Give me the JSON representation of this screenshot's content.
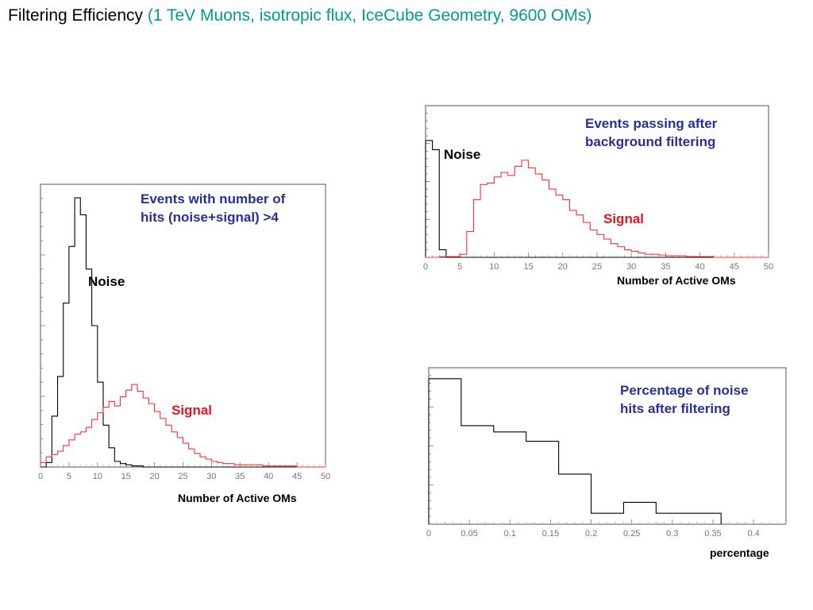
{
  "slide": {
    "title_main": "Filtering Efficiency",
    "title_sub": "(1 TeV Muons, isotropic flux, IceCube Geometry, 9600 OMs)"
  },
  "colors": {
    "noise": "#000000",
    "signal": "#ff3030",
    "annotation_blue": "#2b2f95",
    "annotation_red": "#e8141b",
    "title_sub": "#009b8f"
  },
  "chart_data": [
    {
      "type": "histogram",
      "id": "left",
      "xlabel": "Number of Active OMs",
      "xlim": [
        0,
        50
      ],
      "ylim": [
        0,
        0.25
      ],
      "bin_width": 1,
      "xticks": [
        "0",
        "5",
        "10",
        "15",
        "20",
        "25",
        "30",
        "35",
        "40",
        "45",
        "50"
      ],
      "annotations": {
        "header_line1": "Events with number of",
        "header_line2": "hits (noise+signal) >4",
        "noise": "Noise",
        "signal": "Signal"
      },
      "series": [
        {
          "label": "Noise",
          "color": "#000000",
          "values": [
            0.0,
            0.004,
            0.045,
            0.08,
            0.145,
            0.195,
            0.238,
            0.223,
            0.175,
            0.125,
            0.075,
            0.037,
            0.017,
            0.005,
            0.003,
            0.002,
            0.001,
            0.001,
            0.0,
            0.0,
            0.0,
            0.0,
            0.0,
            0.0,
            0.0,
            0.0,
            0.0,
            0.0,
            0.0,
            0.0,
            0.0,
            0.0,
            0.0,
            0.0,
            0.0,
            0.0,
            0.0,
            0.0,
            0.0,
            0.0,
            0.0,
            0.0,
            0.0,
            0.0,
            0.0,
            0.0,
            0.0,
            0.0,
            0.0,
            0.0
          ]
        },
        {
          "label": "Signal",
          "color": "#ff3030",
          "values": [
            0.004,
            0.009,
            0.011,
            0.014,
            0.019,
            0.024,
            0.029,
            0.031,
            0.035,
            0.042,
            0.048,
            0.053,
            0.058,
            0.054,
            0.062,
            0.068,
            0.073,
            0.067,
            0.061,
            0.056,
            0.049,
            0.043,
            0.037,
            0.031,
            0.026,
            0.021,
            0.016,
            0.012,
            0.009,
            0.007,
            0.005,
            0.004,
            0.003,
            0.003,
            0.002,
            0.002,
            0.002,
            0.002,
            0.002,
            0.001,
            0.001,
            0.001,
            0.001,
            0.001,
            0.001,
            0.0,
            0.0,
            0.0,
            0.0,
            0.0
          ]
        }
      ]
    },
    {
      "type": "histogram",
      "id": "top-right",
      "xlabel": "Number of Active OMs",
      "xlim": [
        0,
        50
      ],
      "ylim": [
        0,
        1.0
      ],
      "bin_width": 1,
      "xticks": [
        "0",
        "5",
        "10",
        "15",
        "20",
        "25",
        "30",
        "35",
        "40",
        "45",
        "50"
      ],
      "annotations": {
        "header_line1": "Events passing after",
        "header_line2": "background filtering",
        "noise": "Noise",
        "signal": "Signal"
      },
      "series": [
        {
          "label": "Noise",
          "color": "#000000",
          "values": [
            0.77,
            0.71,
            0.05,
            0.0,
            0.0,
            0.0,
            0.0,
            0.0,
            0.0,
            0.0,
            0.0,
            0.0,
            0.0,
            0.0,
            0.0,
            0.0,
            0.0,
            0.0,
            0.0,
            0.0,
            0.0,
            0.0,
            0.0,
            0.0,
            0.0,
            0.0,
            0.0,
            0.0,
            0.0,
            0.0,
            0.0,
            0.0,
            0.0,
            0.0,
            0.0,
            0.0,
            0.0,
            0.0,
            0.0,
            0.0,
            0.0,
            0.0,
            0.0,
            0.0,
            0.0,
            0.0,
            0.0,
            0.0,
            0.0,
            0.0
          ]
        },
        {
          "label": "Signal",
          "color": "#ff3030",
          "values": [
            0.0,
            0.0,
            0.005,
            0.005,
            0.005,
            0.02,
            0.17,
            0.38,
            0.48,
            0.49,
            0.53,
            0.56,
            0.54,
            0.6,
            0.64,
            0.59,
            0.55,
            0.51,
            0.45,
            0.41,
            0.38,
            0.31,
            0.28,
            0.23,
            0.18,
            0.15,
            0.12,
            0.09,
            0.07,
            0.05,
            0.04,
            0.03,
            0.02,
            0.02,
            0.015,
            0.01,
            0.01,
            0.01,
            0.005,
            0.005,
            0.005,
            0.005,
            0.0,
            0.0,
            0.0,
            0.0,
            0.0,
            0.0,
            0.0,
            0.0
          ]
        }
      ]
    },
    {
      "type": "histogram",
      "id": "bottom-right",
      "xlabel": "percentage",
      "xlim": [
        0,
        0.44
      ],
      "ylim": [
        0,
        1.0
      ],
      "xticks": [
        "0",
        "0.05",
        "0.1",
        "0.15",
        "0.2",
        "0.25",
        "0.3",
        "0.35",
        "0.4"
      ],
      "tick_values": [
        0,
        0.05,
        0.1,
        0.15,
        0.2,
        0.25,
        0.3,
        0.35,
        0.4
      ],
      "annotations": {
        "header_line1": "Percentage of noise",
        "header_line2": "hits after filtering"
      },
      "series": [
        {
          "label": "",
          "color": "#000000",
          "bin_edges": [
            0,
            0.04,
            0.08,
            0.12,
            0.16,
            0.2,
            0.24,
            0.28,
            0.36
          ],
          "values": [
            0.93,
            0.63,
            0.59,
            0.53,
            0.32,
            0.07,
            0.14,
            0.07
          ]
        }
      ]
    }
  ]
}
